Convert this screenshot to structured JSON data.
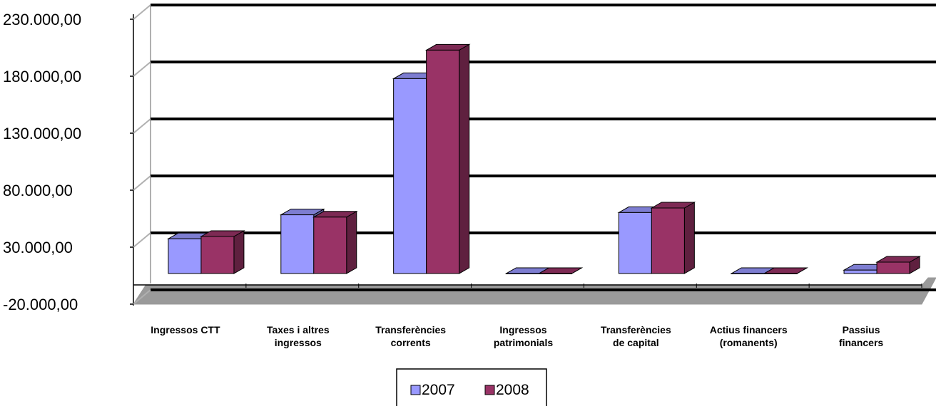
{
  "chart_data": {
    "type": "bar",
    "categories": [
      [
        "Ingressos CTT"
      ],
      [
        "Taxes i altres",
        "ingressos"
      ],
      [
        "Transferències",
        "corrents"
      ],
      [
        "Ingressos",
        "patrimonials"
      ],
      [
        "Transferències",
        "de capital"
      ],
      [
        "Actius financers",
        "(romanents)"
      ],
      [
        "Passius",
        "financers"
      ]
    ],
    "series": [
      {
        "name": "2007",
        "color": "#9999ff",
        "values": [
          30500,
          51500,
          171000,
          0,
          53500,
          0,
          3000
        ]
      },
      {
        "name": "2008",
        "color": "#993366",
        "values": [
          32500,
          49500,
          196000,
          0,
          57500,
          0,
          10000
        ]
      }
    ],
    "yticks": [
      "230.000,00",
      "180.000,00",
      "130.000,00",
      "80.000,00",
      "30.000,00",
      "-20.000,00"
    ],
    "ytick_values": [
      230000,
      180000,
      130000,
      80000,
      30000,
      -20000
    ],
    "ylim": [
      -20000,
      230000
    ],
    "gridlines": true,
    "projection": "3d-clustered",
    "legend_position": "bottom"
  }
}
